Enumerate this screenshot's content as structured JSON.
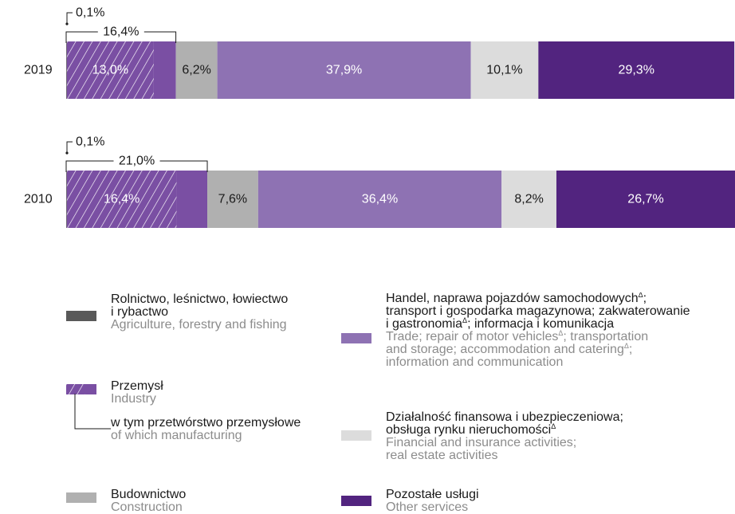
{
  "chart_data": {
    "type": "bar",
    "orientation": "horizontal",
    "stacked": true,
    "categories": [
      "2019",
      "2010"
    ],
    "series": [
      {
        "key": "agriculture",
        "values": [
          0.1,
          0.1
        ],
        "color": "#595959"
      },
      {
        "key": "manufacturing",
        "values": [
          13.0,
          16.4
        ],
        "color": "#7a4fa3",
        "pattern": "hatched"
      },
      {
        "key": "industry_other",
        "values": [
          3.3,
          4.6
        ],
        "color": "#7a4fa3"
      },
      {
        "key": "construction",
        "values": [
          6.2,
          7.6
        ],
        "color": "#b0b0b0"
      },
      {
        "key": "trade",
        "values": [
          37.9,
          36.4
        ],
        "color": "#8e72b3"
      },
      {
        "key": "financial",
        "values": [
          10.1,
          8.2
        ],
        "color": "#dcdcdc"
      },
      {
        "key": "other_services",
        "values": [
          29.3,
          26.7
        ],
        "color": "#52247f"
      }
    ],
    "xlim": [
      0,
      100
    ],
    "grid": false,
    "labels": {
      "2019": {
        "agriculture": "0,1%",
        "industry": "16,4%",
        "manufacturing": "13,0%",
        "construction": "6,2%",
        "trade": "37,9%",
        "financial": "10,1%",
        "other_services": "29,3%"
      },
      "2010": {
        "agriculture": "0,1%",
        "industry": "21,0%",
        "manufacturing": "16,4%",
        "construction": "7,6%",
        "trade": "36,4%",
        "financial": "8,2%",
        "other_services": "26,7%"
      }
    }
  },
  "legend": {
    "agriculture": {
      "pl_1": "Rolnictwo, leśnictwo, łowiectwo",
      "pl_2": "i rybactwo",
      "en": "Agriculture, forestry and fishing"
    },
    "industry": {
      "pl": "Przemysł",
      "en": "Industry"
    },
    "manufacturing": {
      "pl": "w tym przetwórstwo przemysłowe",
      "en": "of which manufacturing"
    },
    "construction": {
      "pl": "Budownictwo",
      "en": "Construction"
    },
    "trade": {
      "pl_1": "Handel, naprawa pojazdów samochodowych",
      "pl_1_end": ";",
      "pl_2": "transport i gospodarka magazynowa; zakwaterowanie",
      "pl_3a": "i gastronomia",
      "pl_3b": "; informacja i komunikacja",
      "en_1a": "Trade; repair of motor vehicles",
      "en_1b": "; transportation",
      "en_2a": "and storage; accommodation and catering",
      "en_2b": ";",
      "en_3": "information and communication"
    },
    "financial": {
      "pl_1": "Działalność finansowa i ubezpieczeniowa;",
      "pl_2": "obsługa rynku nieruchomości",
      "en_1": "Financial and insurance activities;",
      "en_2": "real estate activities"
    },
    "other_services": {
      "pl": "Pozostałe usługi",
      "en": "Other services"
    },
    "footnote_mark": "Δ"
  }
}
